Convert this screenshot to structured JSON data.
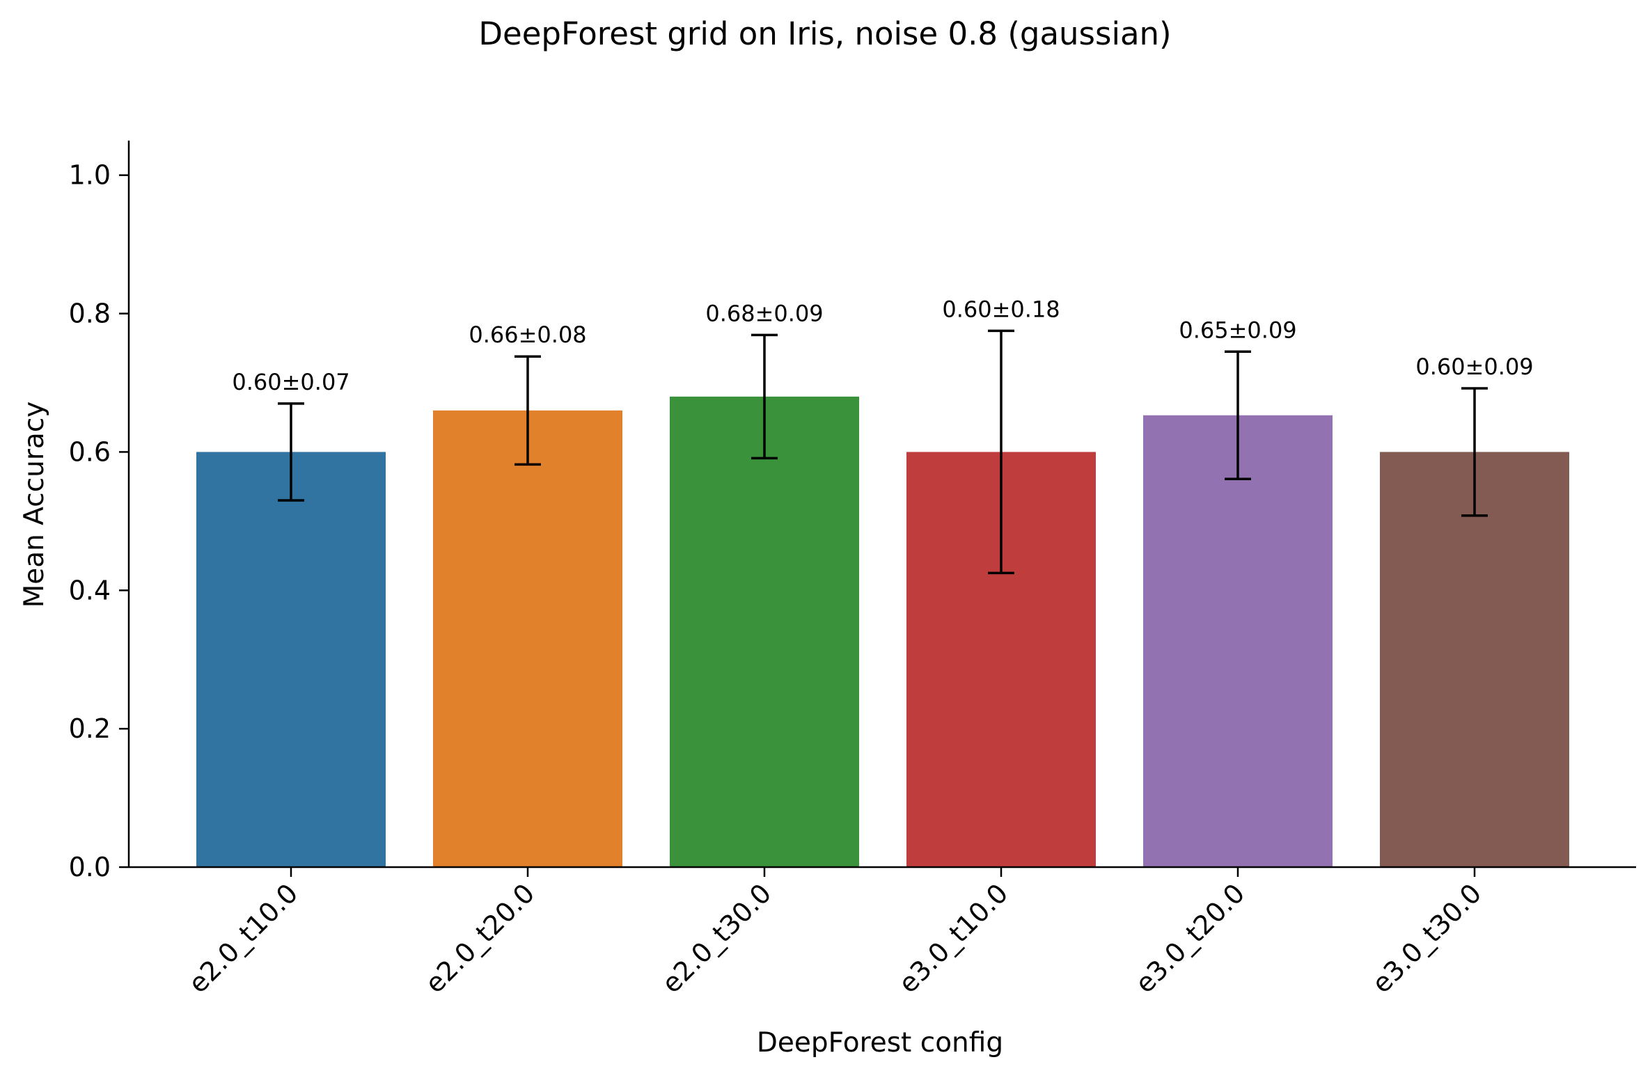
{
  "chart_data": {
    "type": "bar",
    "title": "DeepForest grid on Iris, noise 0.8 (gaussian)",
    "xlabel": "DeepForest config",
    "ylabel": "Mean Accuracy",
    "ylim": [
      0,
      1.05
    ],
    "yticks": [
      0.0,
      0.2,
      0.4,
      0.6,
      0.8,
      1.0
    ],
    "ytick_labels": [
      "0.0",
      "0.2",
      "0.4",
      "0.6",
      "0.8",
      "1.0"
    ],
    "grid": false,
    "legend": "none",
    "categories": [
      "e2.0_t10.0",
      "e2.0_t20.0",
      "e2.0_t30.0",
      "e3.0_t10.0",
      "e3.0_t20.0",
      "e3.0_t30.0"
    ],
    "values": [
      0.6,
      0.66,
      0.68,
      0.6,
      0.653,
      0.6
    ],
    "errors": [
      0.07,
      0.078,
      0.089,
      0.175,
      0.092,
      0.092
    ],
    "data_labels": [
      "0.60±0.07",
      "0.66±0.08",
      "0.68±0.09",
      "0.60±0.18",
      "0.65±0.09",
      "0.60±0.09"
    ],
    "colors": [
      "#3274a1",
      "#e1812c",
      "#3a923a",
      "#c03d3e",
      "#9372b2",
      "#845b53"
    ]
  }
}
